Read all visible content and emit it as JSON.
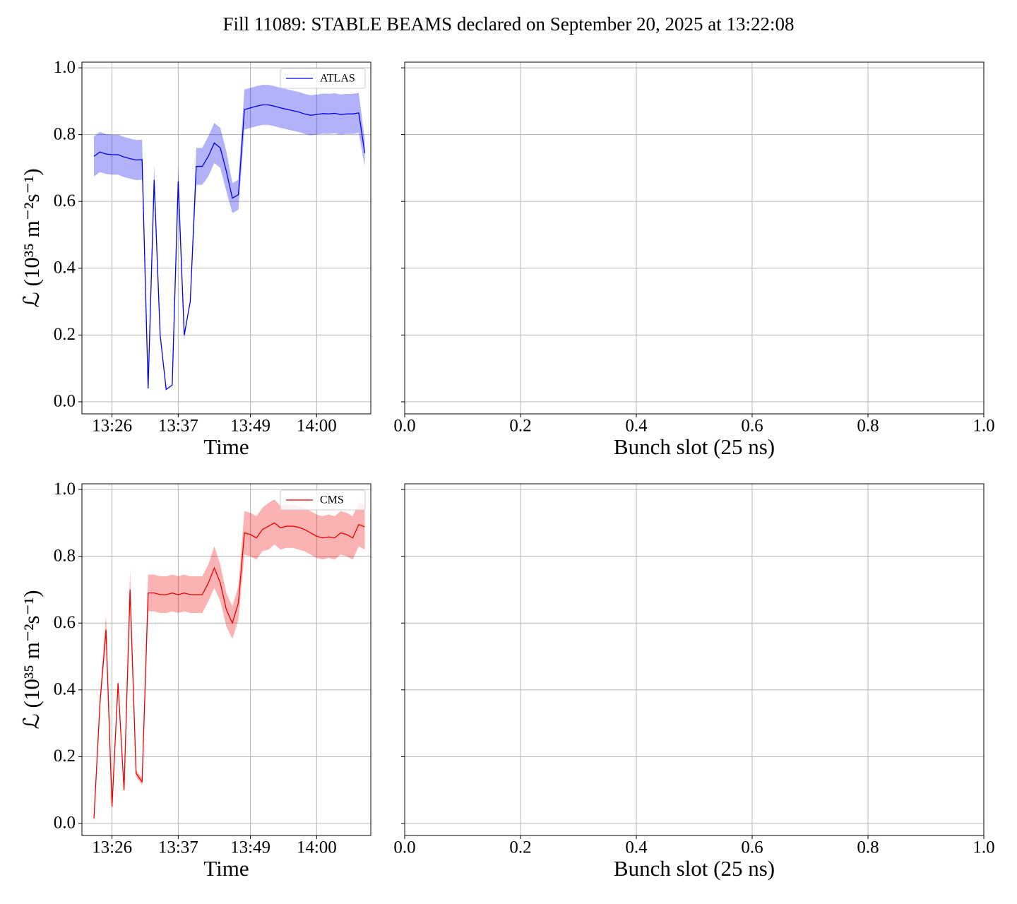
{
  "title": "Fill 11089: STABLE BEAMS declared on September 20, 2025 at 13:22:08",
  "chart_data": [
    {
      "type": "line",
      "xlabel": "Time",
      "ylabel": "ℒ (10³⁵ m⁻²s⁻¹)",
      "grid": true,
      "legend": "upper right",
      "xlim": [
        "13:21",
        "14:09"
      ],
      "xticks": [
        "13:26",
        "13:37",
        "13:49",
        "14:00"
      ],
      "ylim": [
        -0.036,
        1.017
      ],
      "yticks": [
        {
          "value": 0,
          "label": "0.0"
        },
        0.2,
        0.4,
        0.6,
        0.8,
        {
          "value": 1,
          "label": "1.0"
        }
      ],
      "x": [
        "13:23",
        "13:24",
        "13:25",
        "13:26",
        "13:27",
        "13:28",
        "13:29",
        "13:30",
        "13:31",
        "13:32",
        "13:33",
        "13:34",
        "13:35",
        "13:36",
        "13:37",
        "13:38",
        "13:39",
        "13:40",
        "13:41",
        "13:42",
        "13:43",
        "13:44",
        "13:45",
        "13:46",
        "13:47",
        "13:48",
        "13:49",
        "13:50",
        "13:51",
        "13:52",
        "13:53",
        "13:54",
        "13:55",
        "13:56",
        "13:57",
        "13:58",
        "13:59",
        "14:00",
        "14:01",
        "14:02",
        "14:03",
        "14:04",
        "14:05",
        "14:06",
        "14:07",
        "14:08"
      ],
      "series": [
        {
          "name": "ATLAS",
          "color": "#0000ee",
          "values": [
            0.735,
            0.748,
            0.742,
            0.74,
            0.74,
            0.733,
            0.728,
            0.724,
            0.725,
            0.04,
            0.665,
            0.2,
            0.037,
            0.05,
            0.66,
            0.2,
            0.3,
            0.705,
            0.705,
            0.735,
            0.775,
            0.76,
            0.69,
            0.61,
            0.62,
            0.875,
            0.88,
            0.885,
            0.889,
            0.889,
            0.885,
            0.88,
            0.876,
            0.872,
            0.868,
            0.862,
            0.858,
            0.86,
            0.863,
            0.862,
            0.864,
            0.86,
            0.862,
            0.862,
            0.865,
            0.745
          ],
          "lower": [
            0.675,
            0.688,
            0.682,
            0.68,
            0.68,
            0.673,
            0.668,
            0.664,
            0.665,
            0.04,
            0.62,
            0.2,
            0.037,
            0.05,
            0.61,
            0.185,
            0.3,
            0.65,
            0.65,
            0.675,
            0.715,
            0.7,
            0.63,
            0.565,
            0.575,
            0.815,
            0.82,
            0.825,
            0.829,
            0.829,
            0.825,
            0.82,
            0.816,
            0.812,
            0.808,
            0.802,
            0.798,
            0.8,
            0.803,
            0.802,
            0.804,
            0.8,
            0.802,
            0.802,
            0.805,
            0.705
          ],
          "upper": [
            0.795,
            0.808,
            0.802,
            0.8,
            0.8,
            0.793,
            0.788,
            0.784,
            0.785,
            0.04,
            0.71,
            0.2,
            0.037,
            0.05,
            0.71,
            0.2,
            0.3,
            0.76,
            0.76,
            0.795,
            0.835,
            0.82,
            0.75,
            0.655,
            0.665,
            0.935,
            0.94,
            0.945,
            0.949,
            0.949,
            0.945,
            0.94,
            0.936,
            0.932,
            0.928,
            0.922,
            0.918,
            0.92,
            0.923,
            0.922,
            0.924,
            0.92,
            0.922,
            0.922,
            0.925,
            0.785
          ]
        }
      ]
    },
    {
      "type": "line",
      "xlabel": "Bunch slot (25 ns)",
      "grid": true,
      "sharey": true,
      "xlim": [
        0,
        1
      ],
      "xticks": [
        {
          "value": 0,
          "label": "0.0"
        },
        0.2,
        0.4,
        0.6,
        0.8,
        {
          "value": 1,
          "label": "1.0"
        }
      ],
      "ylim": [
        -0.036,
        1.017
      ],
      "yticks": [
        0,
        0.2,
        0.4,
        0.6,
        0.8,
        1
      ],
      "series": []
    },
    {
      "type": "line",
      "xlabel": "Time",
      "ylabel": "ℒ (10³⁵ m⁻²s⁻¹)",
      "grid": true,
      "legend": "upper right",
      "xlim": [
        "13:21",
        "14:09"
      ],
      "xticks": [
        "13:26",
        "13:37",
        "13:49",
        "14:00"
      ],
      "ylim": [
        -0.036,
        1.017
      ],
      "yticks": [
        {
          "value": 0,
          "label": "0.0"
        },
        0.2,
        0.4,
        0.6,
        0.8,
        {
          "value": 1,
          "label": "1.0"
        }
      ],
      "x": [
        "13:23",
        "13:24",
        "13:25",
        "13:26",
        "13:27",
        "13:28",
        "13:29",
        "13:30",
        "13:31",
        "13:32",
        "13:33",
        "13:34",
        "13:35",
        "13:36",
        "13:37",
        "13:38",
        "13:39",
        "13:40",
        "13:41",
        "13:42",
        "13:43",
        "13:44",
        "13:45",
        "13:46",
        "13:47",
        "13:48",
        "13:49",
        "13:50",
        "13:51",
        "13:52",
        "13:53",
        "13:54",
        "13:55",
        "13:56",
        "13:57",
        "13:58",
        "13:59",
        "14:00",
        "14:01",
        "14:02",
        "14:03",
        "14:04",
        "14:05",
        "14:06",
        "14:07",
        "14:08"
      ],
      "series": [
        {
          "name": "CMS",
          "color": "#ee0000",
          "values": [
            0.015,
            0.36,
            0.58,
            0.05,
            0.42,
            0.1,
            0.7,
            0.15,
            0.125,
            0.69,
            0.69,
            0.685,
            0.685,
            0.69,
            0.685,
            0.69,
            0.685,
            0.685,
            0.685,
            0.72,
            0.765,
            0.72,
            0.64,
            0.6,
            0.66,
            0.87,
            0.865,
            0.855,
            0.88,
            0.89,
            0.9,
            0.885,
            0.89,
            0.89,
            0.887,
            0.88,
            0.87,
            0.86,
            0.855,
            0.858,
            0.855,
            0.87,
            0.865,
            0.855,
            0.895,
            0.888
          ],
          "lower": [
            0.015,
            0.35,
            0.55,
            0.05,
            0.42,
            0.095,
            0.66,
            0.14,
            0.115,
            0.635,
            0.635,
            0.63,
            0.63,
            0.635,
            0.63,
            0.635,
            0.63,
            0.63,
            0.63,
            0.665,
            0.705,
            0.665,
            0.59,
            0.552,
            0.61,
            0.805,
            0.8,
            0.79,
            0.815,
            0.82,
            0.835,
            0.82,
            0.825,
            0.825,
            0.82,
            0.815,
            0.805,
            0.795,
            0.79,
            0.795,
            0.79,
            0.805,
            0.8,
            0.79,
            0.83,
            0.82
          ],
          "upper": [
            0.015,
            0.38,
            0.625,
            0.05,
            0.43,
            0.105,
            0.76,
            0.16,
            0.135,
            0.745,
            0.745,
            0.74,
            0.74,
            0.745,
            0.74,
            0.745,
            0.74,
            0.74,
            0.74,
            0.775,
            0.83,
            0.775,
            0.69,
            0.65,
            0.71,
            0.935,
            0.93,
            0.92,
            0.945,
            0.96,
            0.97,
            0.95,
            0.955,
            0.955,
            0.95,
            0.945,
            0.935,
            0.925,
            0.92,
            0.925,
            0.92,
            0.935,
            0.93,
            0.92,
            0.96,
            0.955
          ]
        }
      ]
    },
    {
      "type": "line",
      "xlabel": "Bunch slot (25 ns)",
      "grid": true,
      "sharey": true,
      "xlim": [
        0,
        1
      ],
      "xticks": [
        {
          "value": 0,
          "label": "0.0"
        },
        0.2,
        0.4,
        0.6,
        0.8,
        {
          "value": 1,
          "label": "1.0"
        }
      ],
      "ylim": [
        -0.036,
        1.017
      ],
      "yticks": [
        0,
        0.2,
        0.4,
        0.6,
        0.8,
        1
      ],
      "series": []
    }
  ]
}
